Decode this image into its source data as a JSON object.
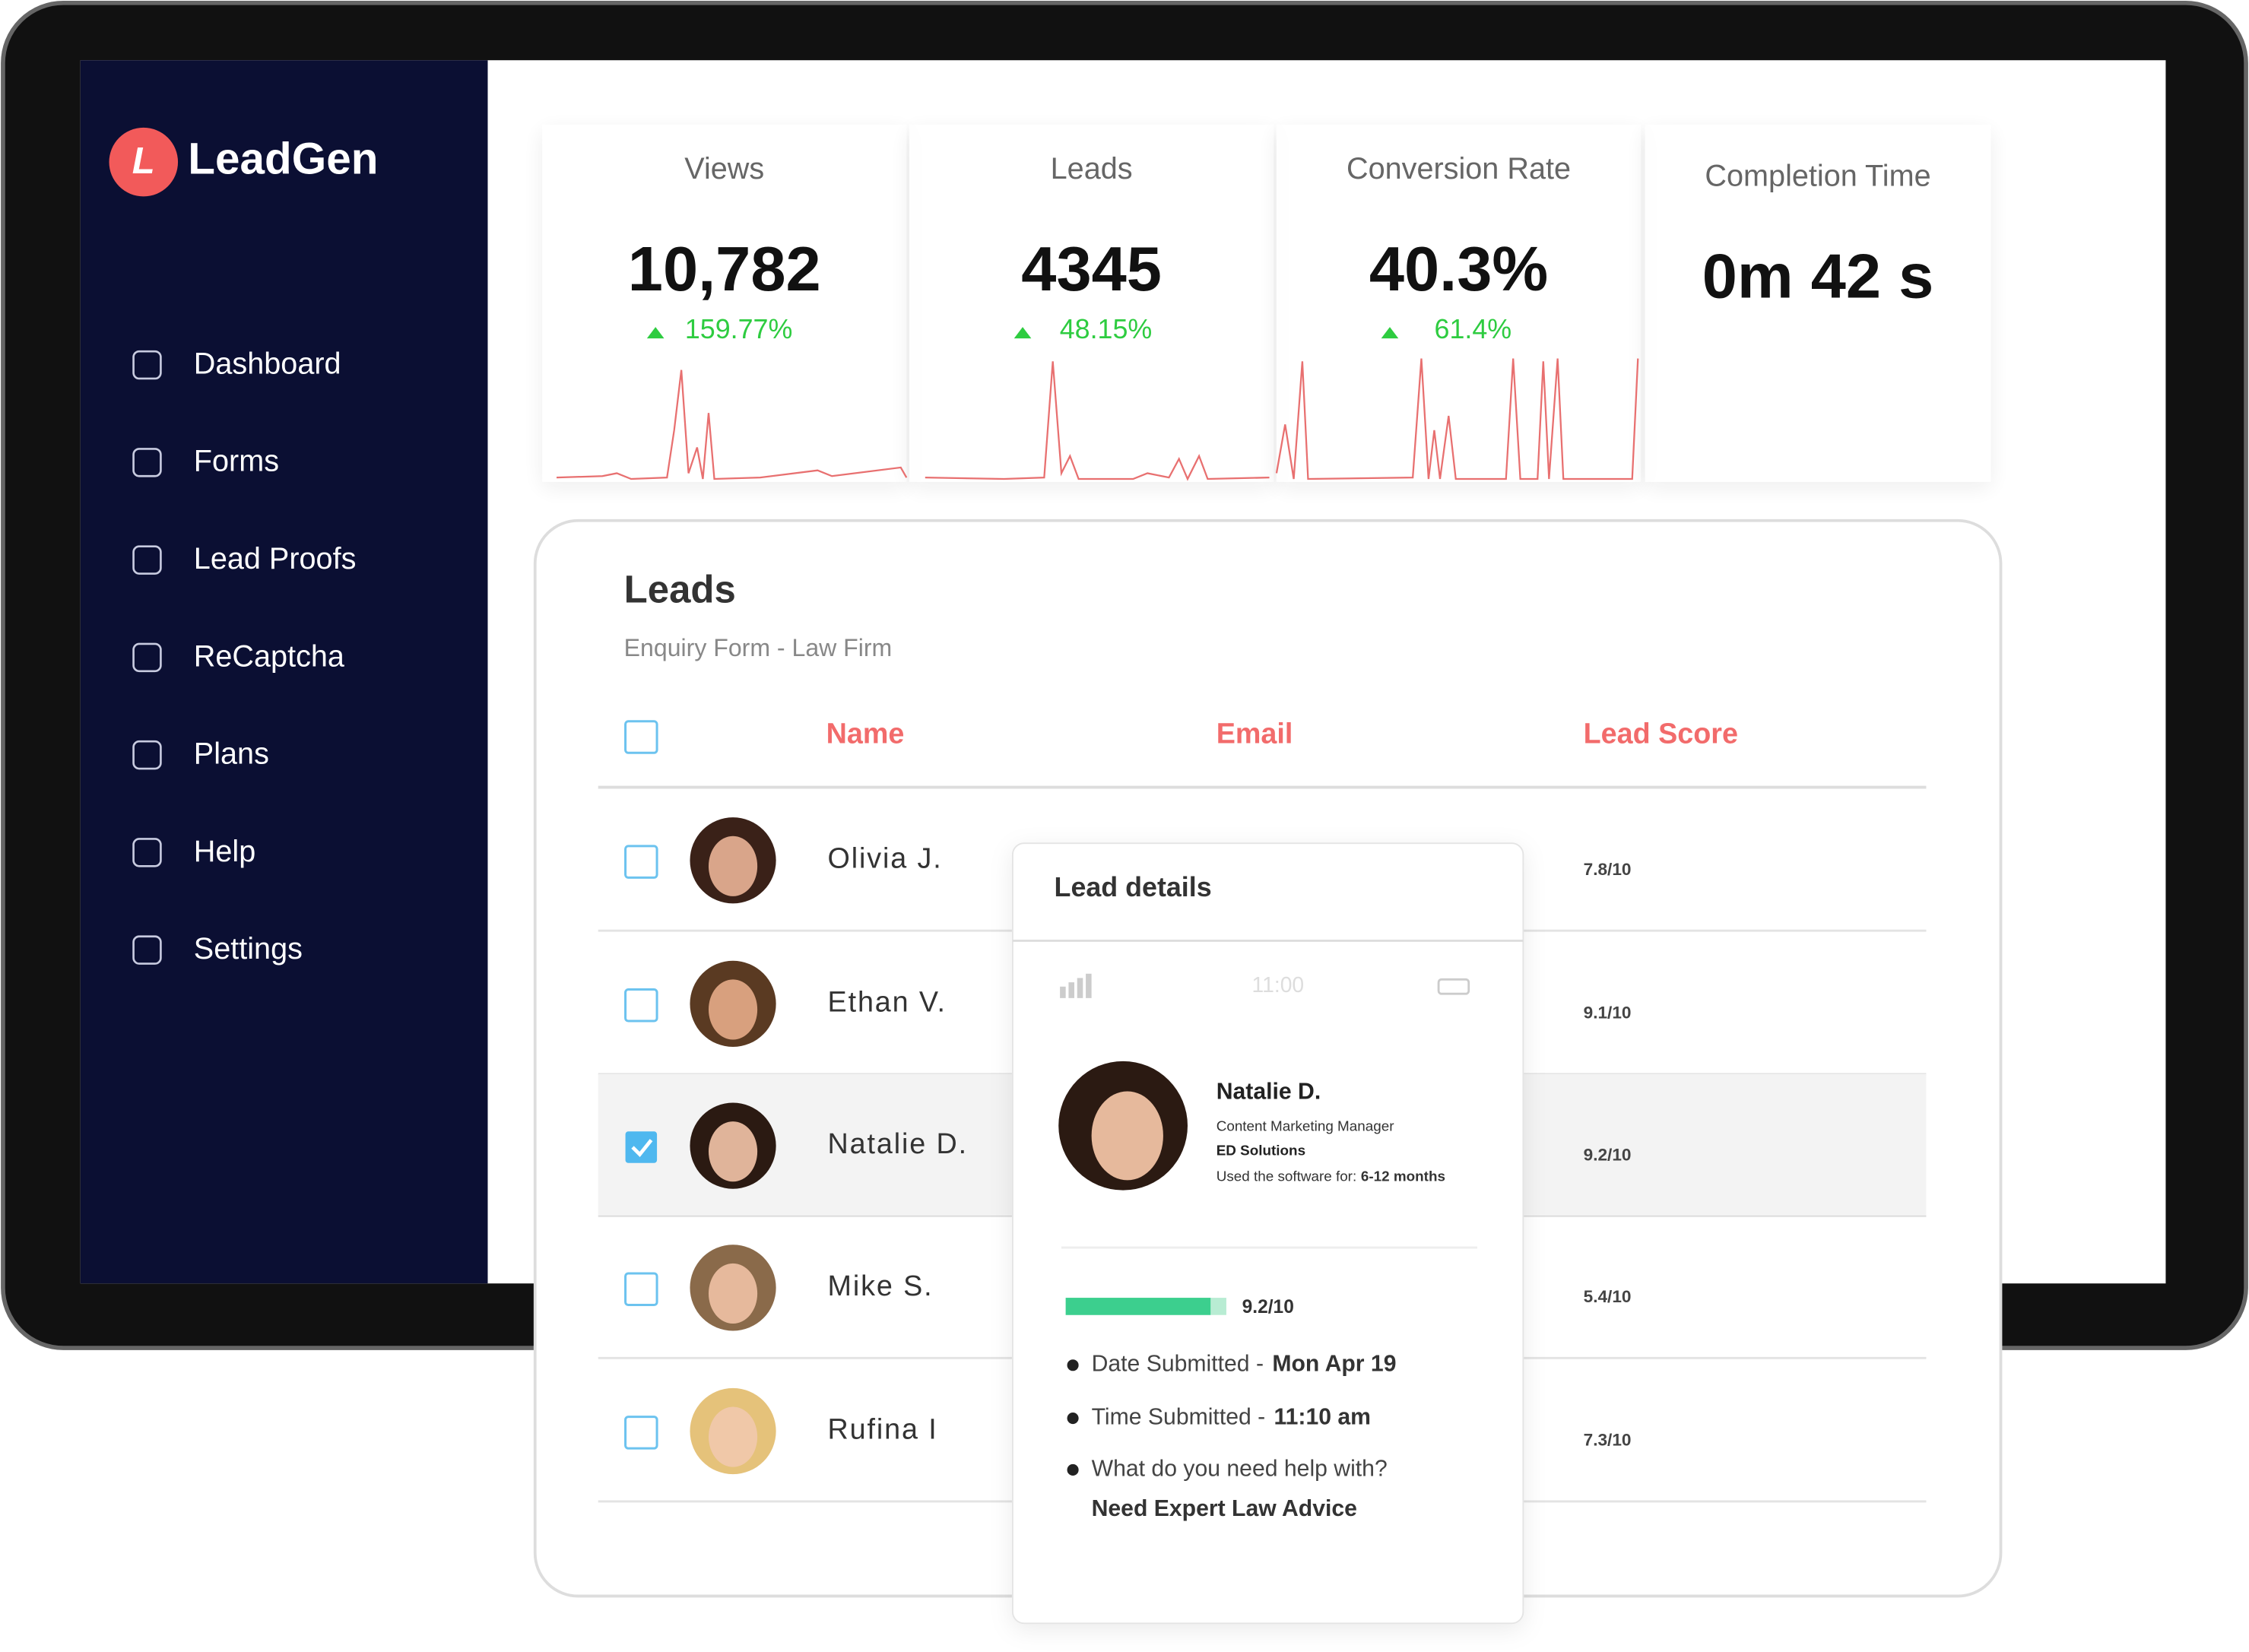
{
  "brand": {
    "initial": "L",
    "name": "LeadGen"
  },
  "nav": [
    "Dashboard",
    "Forms",
    "Lead Proofs",
    "ReCaptcha",
    "Plans",
    "Help",
    "Settings"
  ],
  "stats": [
    {
      "label": "Views",
      "value": "10,782",
      "change": "159.77%"
    },
    {
      "label": "Leads",
      "value": "4345",
      "change": "48.15%"
    },
    {
      "label": "Conversion Rate",
      "value": "40.3%",
      "change": "61.4%"
    },
    {
      "label": "Completion Time",
      "value": "0m 42 s"
    }
  ],
  "leads": {
    "title": "Leads",
    "subtitle": "Enquiry Form - Law Firm",
    "headers": [
      "Name",
      "Email",
      "Lead Score"
    ],
    "rows": [
      {
        "name": "Olivia J.",
        "score": "7.8/10",
        "checked": false
      },
      {
        "name": "Ethan V.",
        "score": "9.1/10",
        "checked": false
      },
      {
        "name": "Natalie D.",
        "score": "9.2/10",
        "checked": true
      },
      {
        "name": "Mike S.",
        "score": "5.4/10",
        "checked": false
      },
      {
        "name": "Rufina I",
        "score": "7.3/10",
        "checked": false
      }
    ]
  },
  "details": {
    "title": "Lead details",
    "time": "11:00",
    "name": "Natalie D.",
    "role": "Content Marketing Manager",
    "company": "ED Solutions",
    "usage_label": "Used the software for:",
    "usage_value": "6-12 months",
    "score": "9.2/10",
    "date_label": "Date Submitted -",
    "date_value": "Mon Apr 19",
    "time_label": "Time Submitted -",
    "time_value": "11:10 am",
    "question": "What do you need help with?",
    "answer": "Need Expert Law Advice"
  }
}
